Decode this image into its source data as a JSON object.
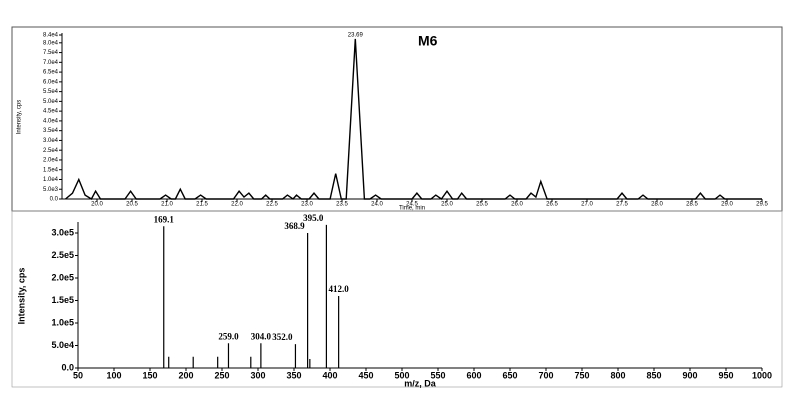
{
  "chart_data": [
    {
      "type": "line",
      "annotation": "M6",
      "peak_annotations": [
        {
          "x": 23.69,
          "label": "23.69"
        }
      ],
      "x_label": "Time, min",
      "y_label": "Intensity, cps",
      "x": [
        19.55,
        19.65,
        19.74,
        19.83,
        19.92,
        19.98,
        20.05,
        20.4,
        20.48,
        20.56,
        20.9,
        20.98,
        21.06,
        21.12,
        21.19,
        21.26,
        21.4,
        21.48,
        21.56,
        21.95,
        22.03,
        22.1,
        22.17,
        22.24,
        22.35,
        22.41,
        22.47,
        22.65,
        22.72,
        22.8,
        22.85,
        22.92,
        23.03,
        23.1,
        23.17,
        23.33,
        23.41,
        23.49,
        23.56,
        23.69,
        23.82,
        23.9,
        23.98,
        24.06,
        24.5,
        24.57,
        24.64,
        24.77,
        24.84,
        24.92,
        25.0,
        25.08,
        25.15,
        25.21,
        25.28,
        25.83,
        25.9,
        25.97,
        26.13,
        26.2,
        26.27,
        26.34,
        26.43,
        27.43,
        27.5,
        27.57,
        27.73,
        27.8,
        27.87,
        28.55,
        28.62,
        28.69,
        28.83,
        28.9,
        28.97,
        29.5
      ],
      "series": [
        {
          "color": "#000000",
          "values": [
            0,
            3000,
            10000,
            2000,
            0,
            4000,
            0,
            0,
            4000,
            0,
            0,
            2000,
            0,
            0,
            5000,
            0,
            0,
            2000,
            0,
            0,
            4000,
            1000,
            3000,
            0,
            0,
            2000,
            0,
            0,
            2000,
            0,
            2000,
            0,
            0,
            3000,
            0,
            0,
            13000,
            0,
            0,
            82000,
            0,
            0,
            2000,
            0,
            0,
            3000,
            0,
            0,
            2000,
            0,
            4000,
            0,
            0,
            3000,
            0,
            0,
            2000,
            0,
            0,
            3000,
            1000,
            9000,
            0,
            0,
            3000,
            0,
            0,
            2000,
            0,
            0,
            3000,
            0,
            0,
            2000,
            0,
            0
          ]
        }
      ],
      "xlim": [
        19.5,
        29.5
      ],
      "xticks": [
        {
          "value": 20,
          "label": "20.0"
        },
        {
          "value": 20.5,
          "label": "20.5"
        },
        {
          "value": 21,
          "label": "21.0"
        },
        {
          "value": 21.5,
          "label": "21.5"
        },
        {
          "value": 22,
          "label": "22.0"
        },
        {
          "value": 22.5,
          "label": "22.5"
        },
        {
          "value": 23,
          "label": "23.0"
        },
        {
          "value": 23.5,
          "label": "23.5"
        },
        {
          "value": 24,
          "label": "24.0"
        },
        {
          "value": 24.5,
          "label": "24.5"
        },
        {
          "value": 25,
          "label": "25.0"
        },
        {
          "value": 25.5,
          "label": "25.5"
        },
        {
          "value": 26,
          "label": "26.0"
        },
        {
          "value": 26.5,
          "label": "26.5"
        },
        {
          "value": 27,
          "label": "27.0"
        },
        {
          "value": 27.5,
          "label": "27.5"
        },
        {
          "value": 28,
          "label": "28.0"
        },
        {
          "value": 28.5,
          "label": "28.5"
        },
        {
          "value": 29,
          "label": "29.0"
        },
        {
          "value": 29.5,
          "label": "29.5"
        }
      ],
      "ylim": [
        0,
        84000
      ],
      "yticks": [
        {
          "value": 0,
          "label": "0.0"
        },
        {
          "value": 5000,
          "label": "5.0e3"
        },
        {
          "value": 10000,
          "label": "1.0e4"
        },
        {
          "value": 15000,
          "label": "1.5e4"
        },
        {
          "value": 20000,
          "label": "2.0e4"
        },
        {
          "value": 25000,
          "label": "2.5e4"
        },
        {
          "value": 30000,
          "label": "3.0e4"
        },
        {
          "value": 35000,
          "label": "3.5e4"
        },
        {
          "value": 40000,
          "label": "4.0e4"
        },
        {
          "value": 45000,
          "label": "4.5e4"
        },
        {
          "value": 50000,
          "label": "5.0e4"
        },
        {
          "value": 55000,
          "label": "5.5e4"
        },
        {
          "value": 60000,
          "label": "6.0e4"
        },
        {
          "value": 65000,
          "label": "6.5e4"
        },
        {
          "value": 70000,
          "label": "7.0e4"
        },
        {
          "value": 75000,
          "label": "7.5e4"
        },
        {
          "value": 80000,
          "label": "8.0e4"
        },
        {
          "value": 84000,
          "label": "8.4e4"
        }
      ]
    },
    {
      "type": "stick",
      "x_label": "m/z, Da",
      "y_label": "Intensity, cps",
      "x": [
        169.1,
        176,
        210,
        244,
        259,
        290,
        304,
        352,
        368.9,
        372,
        395,
        412
      ],
      "values": [
        315000,
        25000,
        25000,
        25000,
        55000,
        25000,
        55000,
        53000,
        300000,
        20000,
        318000,
        160000
      ],
      "peak_labels": [
        "169.1",
        null,
        null,
        null,
        "259.0",
        null,
        "304.0",
        "352.0",
        "368.9",
        null,
        "395.0",
        "412.0"
      ],
      "color": "#000000",
      "xlim": [
        50,
        1000
      ],
      "xticks": [
        50,
        100,
        150,
        200,
        250,
        300,
        350,
        400,
        450,
        500,
        550,
        600,
        650,
        700,
        750,
        800,
        850,
        900,
        950,
        1000
      ],
      "ylim": [
        0,
        320000
      ],
      "yticks": [
        {
          "value": 0,
          "label": "0.0"
        },
        {
          "value": 50000,
          "label": "5.0e4"
        },
        {
          "value": 100000,
          "label": "1.0e5"
        },
        {
          "value": 150000,
          "label": "1.5e5"
        },
        {
          "value": 200000,
          "label": "2.0e5"
        },
        {
          "value": 250000,
          "label": "2.5e5"
        },
        {
          "value": 300000,
          "label": "3.0e5"
        }
      ]
    }
  ]
}
